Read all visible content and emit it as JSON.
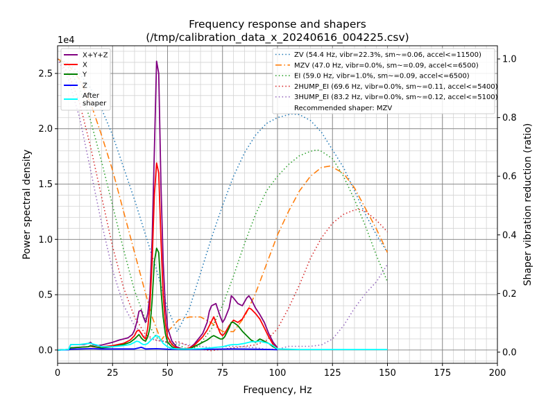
{
  "chart_data": {
    "type": "line",
    "title_line1": "Frequency response and shapers",
    "title_line2": "(/tmp/calibration_data_x_20240616_004225.csv)",
    "xlabel": "Frequency, Hz",
    "ylabel_left": "Power spectral density",
    "ylabel_right": "Shaper vibration reduction (ratio)",
    "offset_text": "1e4",
    "xlim": [
      0,
      200
    ],
    "ylim_left": [
      -0.12,
      2.75
    ],
    "ylim_right": [
      -0.038,
      1.045
    ],
    "x_ticks": [
      0,
      25,
      50,
      75,
      100,
      125,
      150,
      175,
      200
    ],
    "x_tick_labels": [
      "0",
      "25",
      "50",
      "75",
      "100",
      "125",
      "150",
      "175",
      "200"
    ],
    "y_ticks_left": [
      0,
      0.5,
      1.0,
      1.5,
      2.0,
      2.5
    ],
    "y_tick_labels_left": [
      "0.0",
      "0.5",
      "1.0",
      "1.5",
      "2.0",
      "2.5"
    ],
    "y_ticks_right": [
      0,
      0.2,
      0.4,
      0.6,
      0.8,
      1.0
    ],
    "y_tick_labels_right": [
      "0.0",
      "0.2",
      "0.4",
      "0.6",
      "0.8",
      "1.0"
    ],
    "grid": true,
    "psd_series": [
      {
        "name": "X+Y+Z",
        "color": "#800080",
        "x": [
          0,
          5,
          6,
          10,
          12,
          14,
          15,
          16,
          18,
          20,
          22,
          25,
          28,
          30,
          32,
          34,
          35,
          36,
          37,
          38,
          39,
          40,
          41,
          42,
          43,
          44,
          45,
          46,
          47,
          48,
          49,
          50,
          52,
          54,
          56,
          58,
          60,
          62,
          64,
          66,
          68,
          69,
          70,
          72,
          74,
          75,
          76,
          78,
          79,
          80,
          82,
          84,
          86,
          87,
          88,
          89,
          90,
          92,
          94,
          96,
          98,
          100
        ],
        "y": [
          0,
          0.005,
          0.05,
          0.05,
          0.05,
          0.06,
          0.07,
          0.05,
          0.04,
          0.045,
          0.055,
          0.07,
          0.09,
          0.1,
          0.11,
          0.14,
          0.18,
          0.25,
          0.35,
          0.36,
          0.3,
          0.25,
          0.33,
          0.5,
          1.0,
          1.8,
          2.61,
          2.5,
          1.5,
          0.8,
          0.4,
          0.2,
          0.08,
          0.03,
          0.015,
          0.01,
          0.02,
          0.05,
          0.1,
          0.15,
          0.25,
          0.35,
          0.4,
          0.42,
          0.3,
          0.25,
          0.28,
          0.38,
          0.49,
          0.47,
          0.42,
          0.4,
          0.47,
          0.49,
          0.46,
          0.42,
          0.38,
          0.32,
          0.25,
          0.15,
          0.07,
          0.02
        ]
      },
      {
        "name": "X",
        "color": "#ff0000",
        "x": [
          0,
          5,
          6,
          10,
          14,
          15,
          16,
          18,
          20,
          25,
          30,
          33,
          35,
          36,
          37,
          38,
          39,
          40,
          41,
          42,
          43,
          44,
          45,
          46,
          47,
          48,
          49,
          50,
          52,
          54,
          56,
          58,
          60,
          62,
          64,
          66,
          68,
          70,
          71,
          72,
          74,
          75,
          76,
          78,
          80,
          82,
          84,
          86,
          87,
          88,
          90,
          92,
          94,
          96,
          98,
          100
        ],
        "y": [
          0,
          0.005,
          0.02,
          0.025,
          0.03,
          0.035,
          0.03,
          0.025,
          0.03,
          0.04,
          0.06,
          0.09,
          0.13,
          0.17,
          0.18,
          0.15,
          0.12,
          0.1,
          0.2,
          0.4,
          0.8,
          1.4,
          1.69,
          1.6,
          1.0,
          0.5,
          0.25,
          0.12,
          0.05,
          0.02,
          0.01,
          0.01,
          0.02,
          0.04,
          0.08,
          0.12,
          0.18,
          0.26,
          0.3,
          0.25,
          0.15,
          0.13,
          0.15,
          0.22,
          0.27,
          0.25,
          0.28,
          0.35,
          0.38,
          0.37,
          0.33,
          0.28,
          0.2,
          0.12,
          0.05,
          0.01
        ]
      },
      {
        "name": "Y",
        "color": "#008000",
        "x": [
          0,
          5,
          6,
          10,
          14,
          15,
          16,
          18,
          20,
          25,
          30,
          33,
          35,
          36,
          37,
          38,
          39,
          40,
          41,
          42,
          43,
          44,
          45,
          46,
          47,
          48,
          49,
          50,
          52,
          54,
          56,
          58,
          60,
          62,
          64,
          66,
          68,
          70,
          71,
          72,
          74,
          75,
          76,
          78,
          79,
          80,
          82,
          84,
          86,
          88,
          90,
          92,
          94,
          96,
          98,
          100
        ],
        "y": [
          0,
          0.005,
          0.02,
          0.025,
          0.03,
          0.04,
          0.035,
          0.025,
          0.02,
          0.03,
          0.05,
          0.07,
          0.1,
          0.12,
          0.14,
          0.11,
          0.09,
          0.08,
          0.12,
          0.2,
          0.45,
          0.8,
          0.92,
          0.88,
          0.55,
          0.3,
          0.15,
          0.07,
          0.03,
          0.01,
          0.005,
          0.005,
          0.01,
          0.03,
          0.05,
          0.07,
          0.09,
          0.12,
          0.13,
          0.12,
          0.1,
          0.1,
          0.12,
          0.2,
          0.25,
          0.25,
          0.22,
          0.17,
          0.13,
          0.09,
          0.07,
          0.1,
          0.08,
          0.06,
          0.03,
          0.01
        ]
      },
      {
        "name": "Z",
        "color": "#0000ff",
        "x": [
          0,
          5,
          6,
          10,
          15,
          20,
          25,
          30,
          35,
          37,
          38,
          39,
          40,
          45,
          50,
          60,
          70,
          80,
          90,
          95,
          100
        ],
        "y": [
          0,
          0.002,
          0.008,
          0.01,
          0.012,
          0.01,
          0.01,
          0.01,
          0.01,
          0.02,
          0.025,
          0.018,
          0.01,
          0.012,
          0.008,
          0.006,
          0.008,
          0.01,
          0.008,
          0.006,
          0.003
        ]
      },
      {
        "name": "After\nshaper",
        "color": "#00ffff",
        "x": [
          0,
          5,
          6,
          10,
          14,
          15,
          16,
          18,
          20,
          25,
          30,
          33,
          35,
          36,
          37,
          38,
          39,
          40,
          41,
          42,
          43,
          44,
          45,
          46,
          47,
          48,
          50,
          52,
          55,
          60,
          65,
          70,
          72,
          75,
          78,
          80,
          82,
          85,
          87,
          88,
          90,
          92,
          94,
          96,
          98,
          100,
          110,
          120,
          130,
          140,
          150
        ],
        "y": [
          0,
          0.005,
          0.05,
          0.05,
          0.06,
          0.06,
          0.055,
          0.045,
          0.03,
          0.03,
          0.04,
          0.05,
          0.07,
          0.08,
          0.075,
          0.06,
          0.05,
          0.05,
          0.06,
          0.08,
          0.1,
          0.12,
          0.13,
          0.12,
          0.09,
          0.06,
          0.03,
          0.015,
          0.01,
          0.01,
          0.012,
          0.02,
          0.025,
          0.03,
          0.045,
          0.05,
          0.05,
          0.06,
          0.07,
          0.075,
          0.075,
          0.08,
          0.07,
          0.06,
          0.04,
          0.01,
          0.005,
          0.005,
          0.005,
          0.005,
          0.005
        ]
      }
    ],
    "shaper_series": [
      {
        "name": "ZV (54.4 Hz, vibr=22.3%, sm~=0.06, accel<=11500)",
        "color": "#1f77b4",
        "dash": "dotted",
        "x": [
          0,
          5,
          10,
          15,
          20,
          25,
          30,
          35,
          40,
          45,
          50,
          54.4,
          60,
          65,
          70,
          75,
          80,
          85,
          90,
          95,
          100,
          105,
          106.5,
          110,
          115,
          120,
          125,
          130,
          135,
          140,
          145,
          150
        ],
        "y": [
          1.0,
          0.985,
          0.95,
          0.9,
          0.83,
          0.74,
          0.63,
          0.52,
          0.4,
          0.28,
          0.15,
          0.07,
          0.15,
          0.27,
          0.39,
          0.5,
          0.6,
          0.68,
          0.74,
          0.78,
          0.8,
          0.81,
          0.812,
          0.81,
          0.79,
          0.75,
          0.69,
          0.63,
          0.55,
          0.47,
          0.4,
          0.34
        ]
      },
      {
        "name": "MZV (47.0 Hz, vibr=0.0%, sm~=0.09, accel<=6500)",
        "color": "#ff7f0e",
        "dash": "dashdot",
        "x": [
          0,
          5,
          10,
          15,
          20,
          25,
          30,
          35,
          40,
          43,
          47,
          50,
          55,
          60,
          65,
          70,
          75,
          80,
          85,
          90,
          95,
          100,
          105,
          110,
          115,
          120,
          124,
          130,
          135,
          140,
          145,
          150
        ],
        "y": [
          1.0,
          0.98,
          0.93,
          0.85,
          0.74,
          0.62,
          0.48,
          0.34,
          0.2,
          0.12,
          0.04,
          0.07,
          0.11,
          0.12,
          0.12,
          0.1,
          0.07,
          0.07,
          0.12,
          0.2,
          0.3,
          0.4,
          0.48,
          0.55,
          0.6,
          0.63,
          0.635,
          0.61,
          0.56,
          0.49,
          0.42,
          0.34
        ]
      },
      {
        "name": "EI (59.0 Hz, vibr=1.0%, sm~=0.09, accel<=6500)",
        "color": "#2ca02c",
        "dash": "dotted",
        "x": [
          0,
          5,
          10,
          15,
          20,
          25,
          30,
          35,
          40,
          45,
          50,
          55,
          59,
          62,
          65,
          70,
          75,
          80,
          85,
          90,
          95,
          100,
          105,
          110,
          115,
          118,
          120,
          125,
          130,
          135,
          140,
          145,
          150
        ],
        "y": [
          1.0,
          0.97,
          0.9,
          0.79,
          0.65,
          0.5,
          0.35,
          0.21,
          0.11,
          0.05,
          0.03,
          0.025,
          0.01,
          0.01,
          0.03,
          0.08,
          0.16,
          0.26,
          0.37,
          0.47,
          0.55,
          0.6,
          0.64,
          0.67,
          0.685,
          0.69,
          0.685,
          0.66,
          0.6,
          0.52,
          0.43,
          0.33,
          0.24
        ]
      },
      {
        "name": "2HUMP_EI (69.6 Hz, vibr=0.0%, sm~=0.11, accel<=5400)",
        "color": "#d62728",
        "dash": "dotted",
        "x": [
          0,
          5,
          10,
          15,
          20,
          25,
          30,
          35,
          40,
          45,
          50,
          55,
          60,
          65,
          70,
          75,
          80,
          85,
          90,
          95,
          100,
          105,
          110,
          115,
          120,
          125,
          130,
          135,
          137,
          140,
          145,
          150
        ],
        "y": [
          1.0,
          0.95,
          0.85,
          0.7,
          0.53,
          0.36,
          0.22,
          0.12,
          0.06,
          0.04,
          0.035,
          0.035,
          0.02,
          0.01,
          0.005,
          0.01,
          0.015,
          0.02,
          0.025,
          0.04,
          0.08,
          0.15,
          0.23,
          0.32,
          0.39,
          0.44,
          0.47,
          0.485,
          0.487,
          0.48,
          0.45,
          0.41
        ]
      },
      {
        "name": "3HUMP_EI (83.2 Hz, vibr=0.0%, sm~=0.12, accel<=5100)",
        "color": "#9467bd",
        "dash": "dotted",
        "x": [
          0,
          5,
          10,
          15,
          20,
          25,
          30,
          35,
          40,
          45,
          50,
          55,
          60,
          65,
          70,
          75,
          80,
          85,
          90,
          95,
          100,
          105,
          110,
          115,
          120,
          125,
          130,
          135,
          140,
          145,
          150
        ],
        "y": [
          1.0,
          0.93,
          0.8,
          0.62,
          0.44,
          0.28,
          0.16,
          0.09,
          0.05,
          0.04,
          0.035,
          0.03,
          0.025,
          0.02,
          0.015,
          0.018,
          0.02,
          0.018,
          0.015,
          0.01,
          0.01,
          0.02,
          0.02,
          0.02,
          0.025,
          0.045,
          0.09,
          0.15,
          0.2,
          0.24,
          0.3
        ]
      }
    ],
    "legend_left_placement": "top-left",
    "legend_right_placement": "top-right",
    "recommended_text": "Recommended shaper: MZV"
  }
}
